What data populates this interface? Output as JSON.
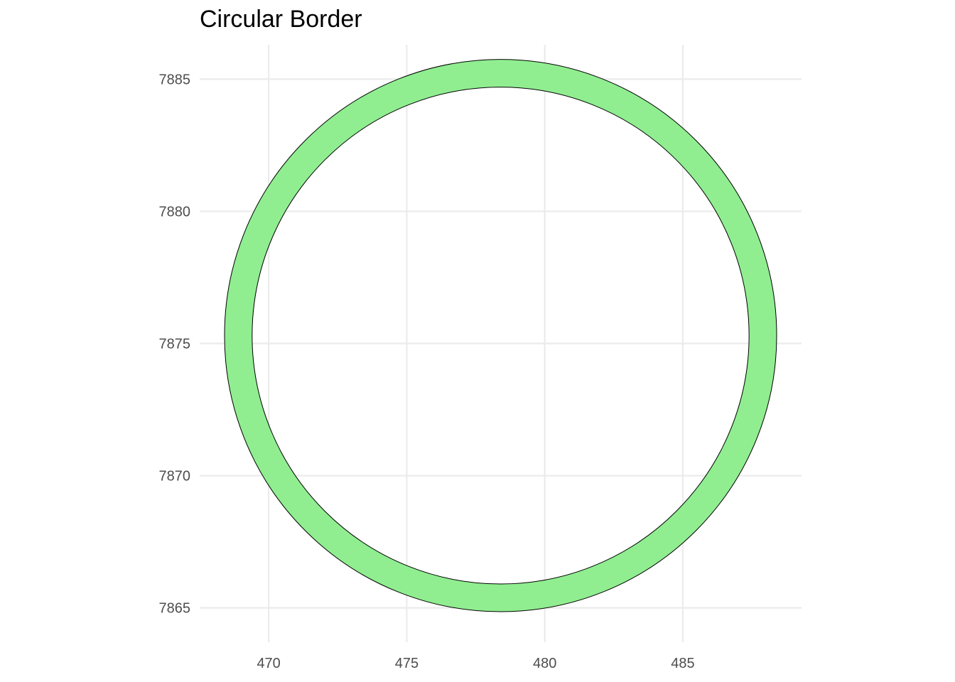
{
  "chart_data": {
    "type": "ring",
    "title": "Circular Border",
    "xlabel": "",
    "ylabel": "",
    "x_ticks": [
      470,
      475,
      480,
      485
    ],
    "y_ticks": [
      7865,
      7870,
      7875,
      7880,
      7885
    ],
    "xlim": [
      467.5,
      489.3
    ],
    "ylim": [
      7863.7,
      7886.3
    ],
    "grid": true,
    "ring": {
      "center": [
        478.4,
        7875.3
      ],
      "outer_radius": 10.0,
      "inner_radius": 9.0,
      "fill": "#90EE90",
      "stroke": "#000000"
    }
  }
}
